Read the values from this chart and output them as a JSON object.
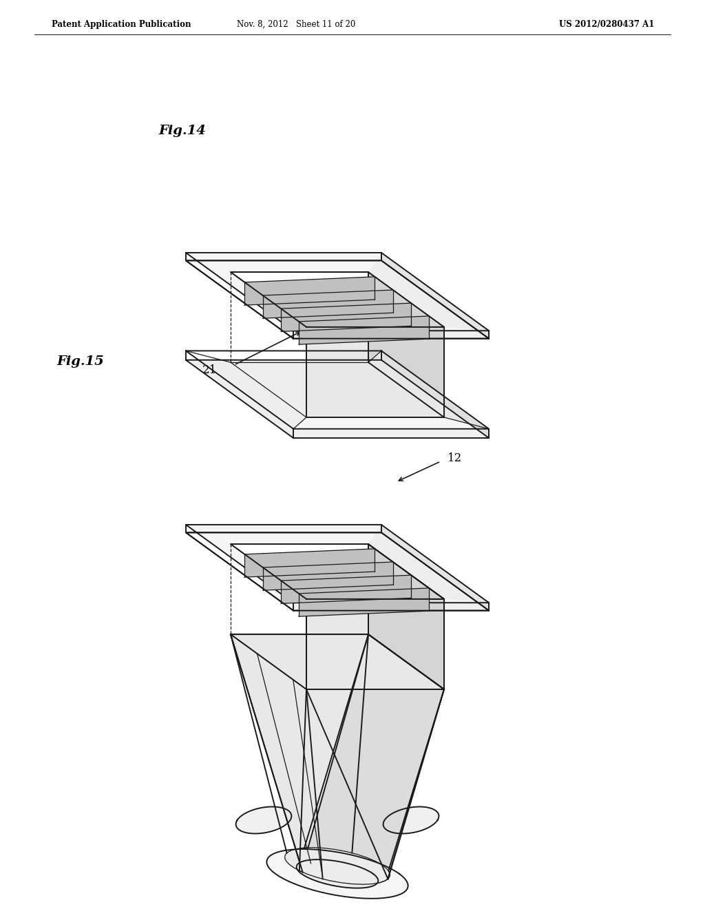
{
  "background_color": "#ffffff",
  "page_width": 10.24,
  "page_height": 13.2,
  "header": {
    "left": "Patent Application Publication",
    "center": "Nov. 8, 2012   Sheet 11 of 20",
    "right": "US 2012/0280437 A1",
    "fontsize": 9
  },
  "fig14_label": "Fig.14",
  "fig15_label": "Fig.15",
  "label_21": "21",
  "label_12": "12",
  "line_color": "#1a1a1a",
  "fill_top": "#f5f5f5",
  "fill_front": "#e8e8e8",
  "fill_right": "#d5d5d5",
  "fill_flange": "#f0f0f0",
  "fill_fin": "#c0c0c0"
}
